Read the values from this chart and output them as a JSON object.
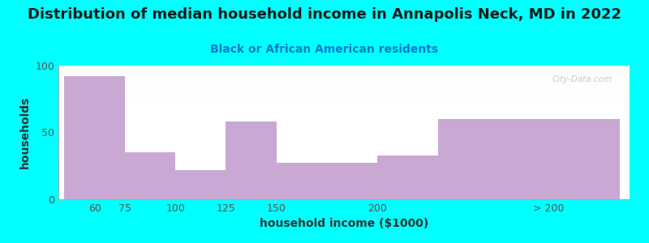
{
  "title": "Distribution of median household income in Annapolis Neck, MD in 2022",
  "subtitle": "Black or African American residents",
  "xlabel": "household income ($1000)",
  "ylabel": "households",
  "background_color": "#00FFFF",
  "bar_color": "#c9a8d4",
  "bar_heights": [
    92,
    35,
    22,
    58,
    27,
    33,
    60
  ],
  "bar_lefts": [
    45,
    75,
    100,
    125,
    150,
    200,
    230
  ],
  "bar_widths": [
    30,
    25,
    25,
    25,
    50,
    30,
    90
  ],
  "xtick_positions": [
    60,
    75,
    100,
    125,
    150,
    200,
    285
  ],
  "xtick_labels": [
    "60",
    "75",
    "100",
    "125",
    "150",
    "200",
    "> 200"
  ],
  "yticks": [
    0,
    50,
    100
  ],
  "xlim": [
    42,
    325
  ],
  "ylim": [
    0,
    100
  ],
  "title_fontsize": 13,
  "subtitle_fontsize": 10,
  "axis_label_fontsize": 10,
  "tick_fontsize": 9,
  "title_color": "#1a1a1a",
  "subtitle_color": "#007acc",
  "watermark": "City-Data.com"
}
